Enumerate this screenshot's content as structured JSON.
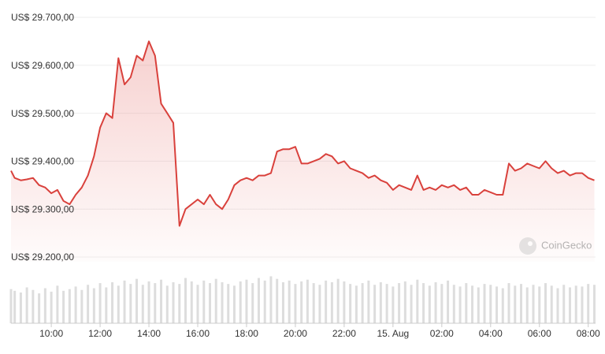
{
  "chart_data": {
    "type": "line",
    "x": [
      8.35,
      8.5,
      8.75,
      9,
      9.25,
      9.5,
      9.75,
      10,
      10.25,
      10.5,
      10.75,
      11,
      11.25,
      11.5,
      11.75,
      12,
      12.25,
      12.5,
      12.75,
      13,
      13.25,
      13.5,
      13.75,
      14,
      14.25,
      14.5,
      14.75,
      15,
      15.25,
      15.5,
      15.75,
      16,
      16.25,
      16.5,
      16.75,
      17,
      17.25,
      17.5,
      17.75,
      18,
      18.25,
      18.5,
      18.75,
      19,
      19.25,
      19.5,
      19.75,
      20,
      20.25,
      20.5,
      20.75,
      21,
      21.25,
      21.5,
      21.75,
      22,
      22.25,
      22.5,
      22.75,
      23,
      23.25,
      23.5,
      23.75,
      24,
      24.25,
      24.5,
      24.75,
      25,
      25.25,
      25.5,
      25.75,
      26,
      26.25,
      26.5,
      26.75,
      27,
      27.25,
      27.5,
      27.75,
      28,
      28.25,
      28.5,
      28.75,
      29,
      29.25,
      29.5,
      29.75,
      30,
      30.25,
      30.5,
      30.75,
      31,
      31.25,
      31.5,
      31.75,
      32,
      32.25
    ],
    "series": [
      {
        "color": "#d9413c",
        "values": [
          29380,
          29365,
          29360,
          29362,
          29365,
          29350,
          29345,
          29333,
          29340,
          29317,
          29310,
          29330,
          29345,
          29370,
          29410,
          29470,
          29500,
          29490,
          29615,
          29560,
          29575,
          29620,
          29610,
          29650,
          29620,
          29520,
          29500,
          29480,
          29265,
          29300,
          29310,
          29320,
          29310,
          29330,
          29310,
          29300,
          29320,
          29350,
          29360,
          29365,
          29360,
          29370,
          29370,
          29375,
          29420,
          29425,
          29425,
          29430,
          29395,
          29395,
          29400,
          29405,
          29415,
          29410,
          29395,
          29400,
          29385,
          29380,
          29375,
          29365,
          29370,
          29360,
          29355,
          29340,
          29350,
          29345,
          29340,
          29370,
          29340,
          29345,
          29340,
          29350,
          29345,
          29350,
          29340,
          29345,
          29330,
          29330,
          29340,
          29335,
          29330,
          29330,
          29395,
          29380,
          29385,
          29395,
          29390,
          29385,
          29400,
          29385,
          29375,
          29380,
          29370,
          29375,
          29375,
          29365,
          29360
        ]
      }
    ],
    "volume": {
      "color": "#dddddd",
      "ylim": [
        0,
        60
      ],
      "values": [
        40,
        38,
        36,
        42,
        39,
        35,
        41,
        37,
        44,
        38,
        40,
        43,
        39,
        45,
        41,
        47,
        42,
        48,
        44,
        50,
        46,
        52,
        45,
        49,
        47,
        51,
        44,
        48,
        46,
        53,
        49,
        45,
        50,
        47,
        52,
        48,
        46,
        44,
        49,
        51,
        47,
        53,
        50,
        55,
        52,
        48,
        50,
        46,
        49,
        51,
        47,
        45,
        50,
        48,
        52,
        49,
        46,
        44,
        47,
        50,
        45,
        48,
        46,
        43,
        47,
        49,
        45,
        51,
        47,
        44,
        48,
        46,
        50,
        45,
        43,
        47,
        44,
        42,
        46,
        45,
        43,
        41,
        47,
        44,
        46,
        42,
        45,
        43,
        47,
        44,
        41,
        45,
        42,
        44,
        43,
        46,
        45
      ]
    },
    "xlim": [
      8.35,
      32.3
    ],
    "ylim": [
      29200,
      29700
    ],
    "xticks": [
      {
        "value": 10,
        "label": "10:00"
      },
      {
        "value": 12,
        "label": "12:00"
      },
      {
        "value": 14,
        "label": "14:00"
      },
      {
        "value": 16,
        "label": "16:00"
      },
      {
        "value": 18,
        "label": "18:00"
      },
      {
        "value": 20,
        "label": "20:00"
      },
      {
        "value": 22,
        "label": "22:00"
      },
      {
        "value": 24,
        "label": "15. Aug"
      },
      {
        "value": 26,
        "label": "02:00"
      },
      {
        "value": 28,
        "label": "04:00"
      },
      {
        "value": 30,
        "label": "06:00"
      },
      {
        "value": 32,
        "label": "08:00"
      }
    ],
    "yticks": [
      {
        "value": 29200,
        "label": "US$ 29.200,00"
      },
      {
        "value": 29300,
        "label": "US$ 29.300,00"
      },
      {
        "value": 29400,
        "label": "US$ 29.400,00"
      },
      {
        "value": 29500,
        "label": "US$ 29.500,00"
      },
      {
        "value": 29600,
        "label": "US$ 29.600,00"
      },
      {
        "value": 29700,
        "label": "US$ 29.700,00"
      }
    ],
    "grid": true,
    "watermark": "CoinGecko"
  }
}
